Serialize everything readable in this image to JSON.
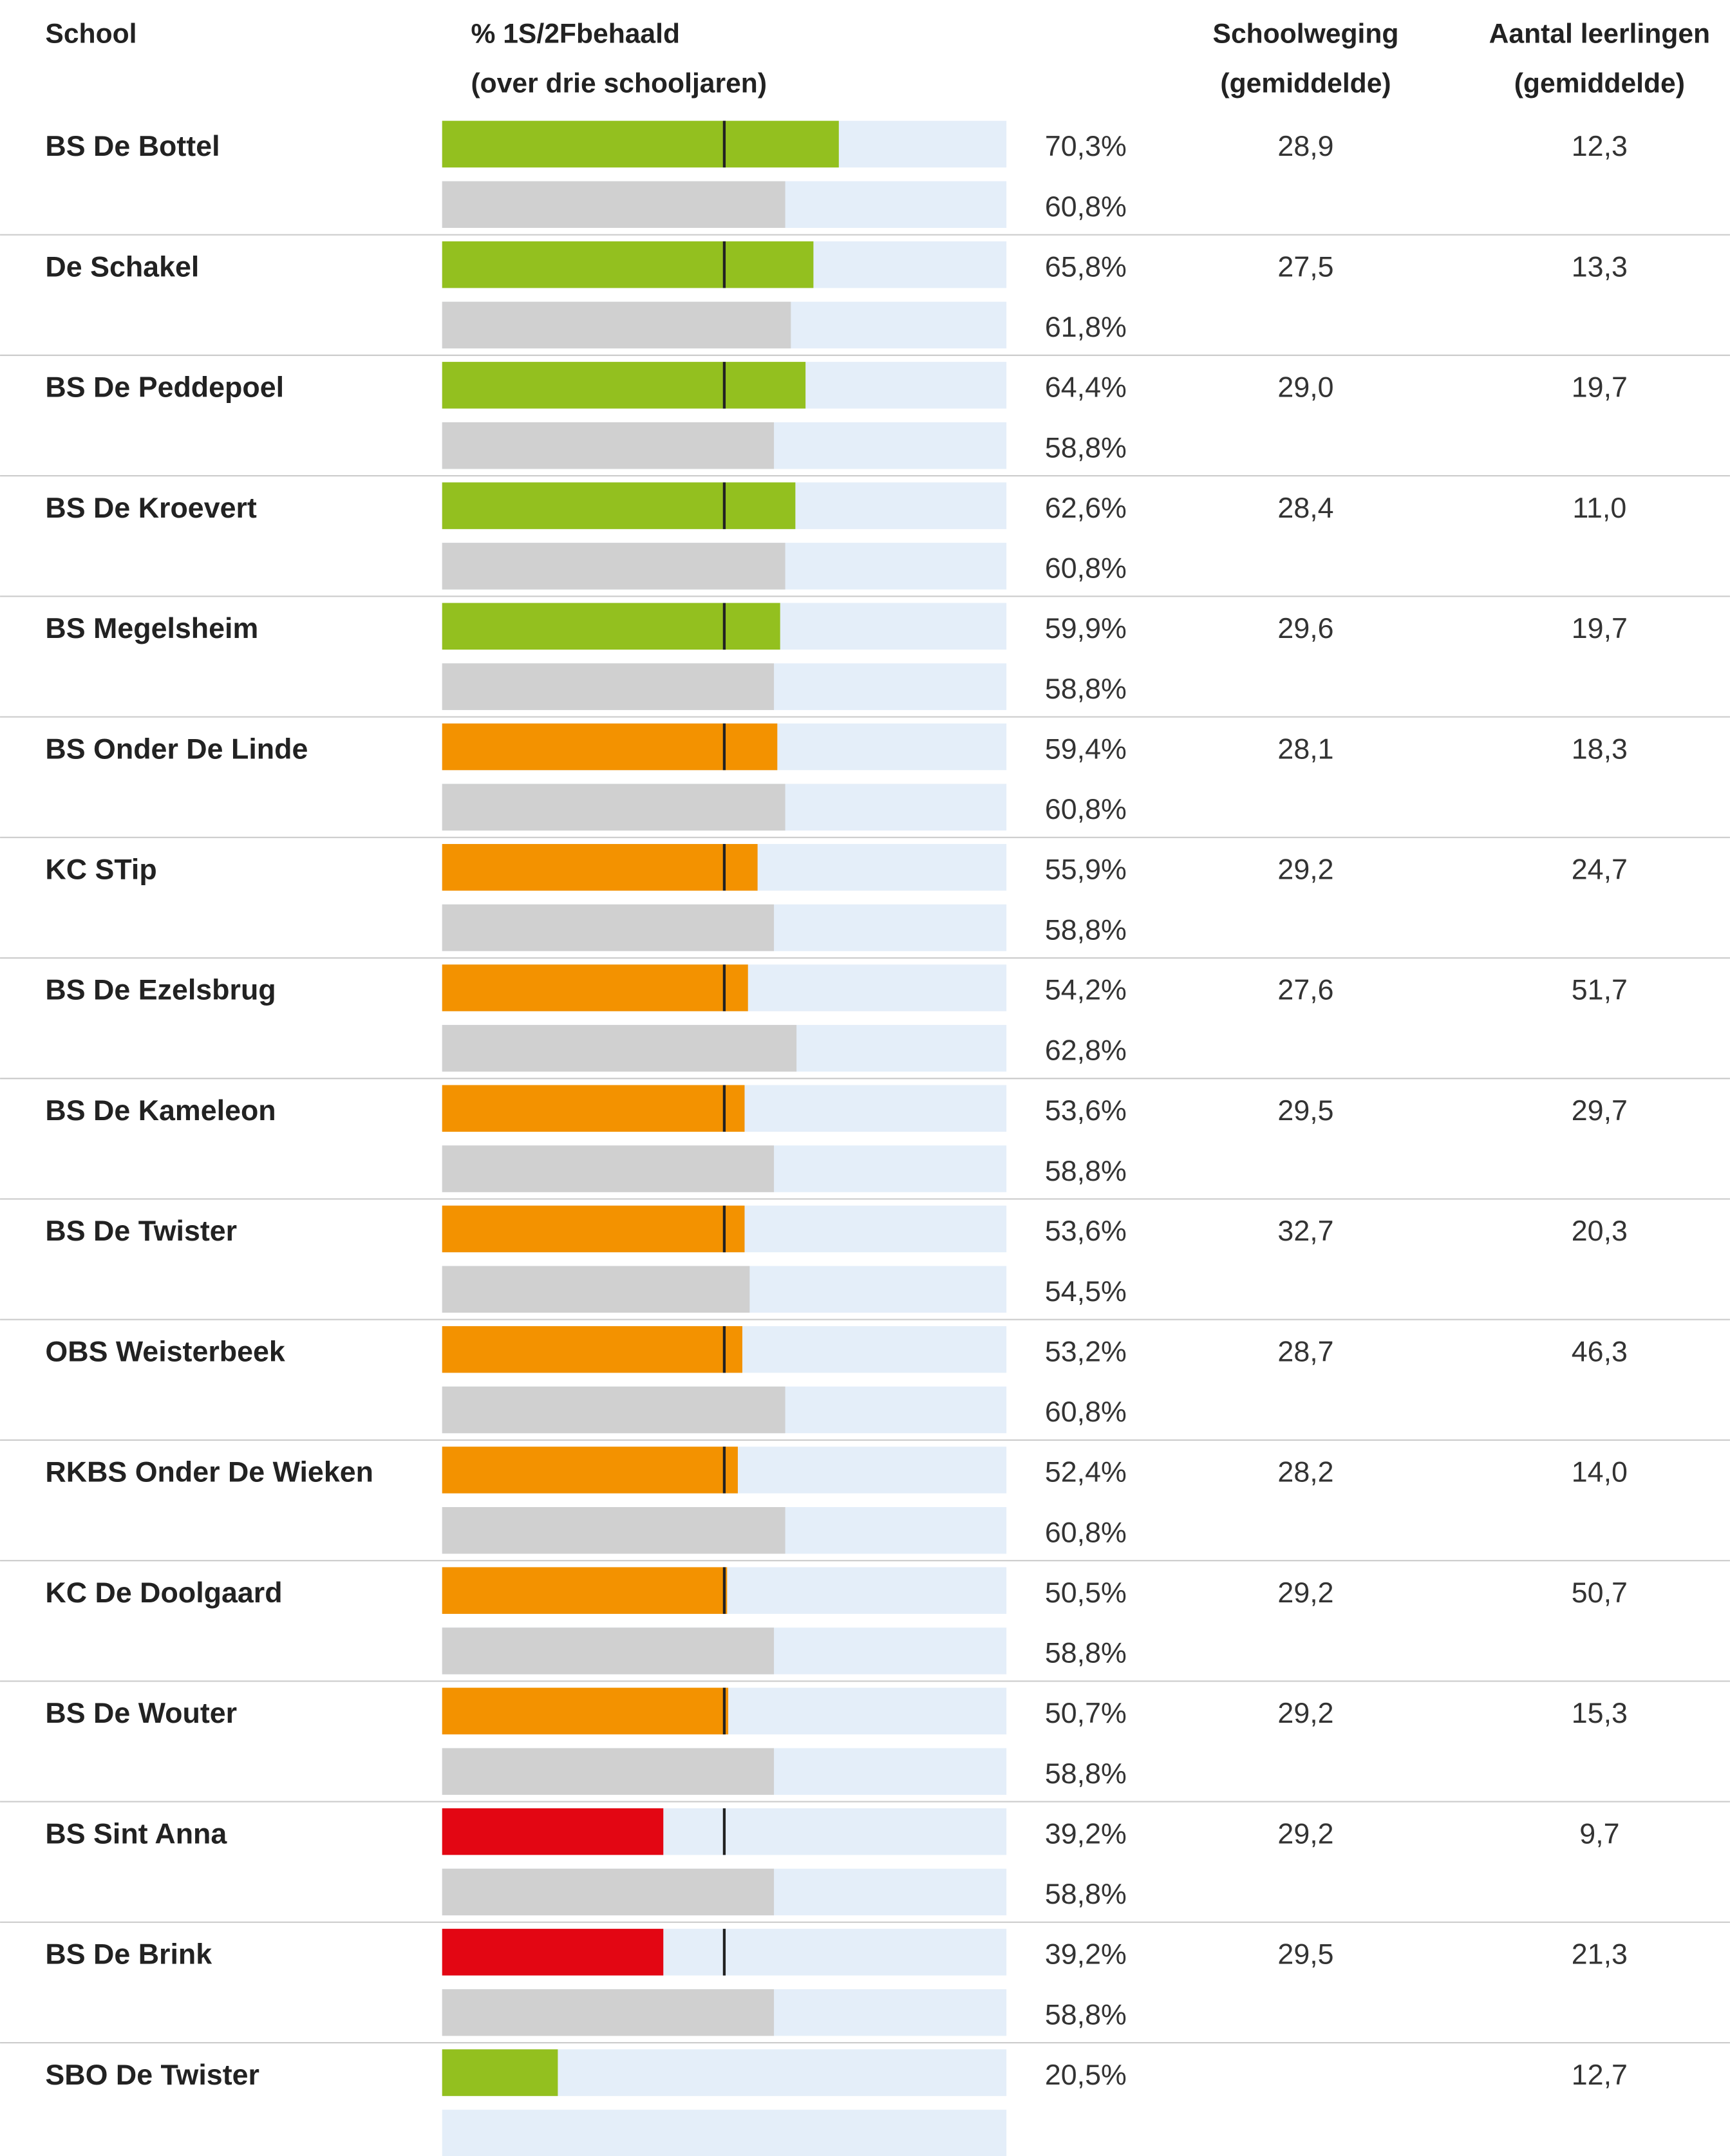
{
  "chart_data": {
    "type": "bar",
    "headers": [
      [
        "School"
      ],
      [
        "% 1S/2Fbehaald",
        "(over drie schooljaren)"
      ],
      [
        "Schoolweging",
        "(gemiddelde)"
      ],
      [
        "Aantal leerlingen",
        "(gemiddelde)"
      ]
    ],
    "xlim": [
      0,
      100
    ],
    "marker": 50,
    "marker_color": "#222222",
    "reference_color": "#d0d0d0",
    "track_color": "#e4eef9",
    "categories": [
      "BS De Bottel",
      "De Schakel",
      "BS De Peddepoel",
      "BS De Kroevert",
      "BS Megelsheim",
      "BS Onder De Linde",
      "KC STip",
      "BS De Ezelsbrug",
      "BS De Kameleon",
      "BS De Twister",
      "OBS Weisterbeek",
      "RKBS Onder De Wieken",
      "KC De Doolgaard",
      "BS De Wouter",
      "BS Sint Anna",
      "BS De Brink",
      "SBO De Twister"
    ],
    "values": [
      70.3,
      65.8,
      64.4,
      62.6,
      59.9,
      59.4,
      55.9,
      54.2,
      53.6,
      53.6,
      53.2,
      52.4,
      50.5,
      50.7,
      39.2,
      39.2,
      20.5
    ],
    "value_labels": [
      "70,3%",
      "65,8%",
      "64,4%",
      "62,6%",
      "59,9%",
      "59,4%",
      "55,9%",
      "54,2%",
      "53,6%",
      "53,6%",
      "53,2%",
      "52,4%",
      "50,5%",
      "50,7%",
      "39,2%",
      "39,2%",
      "20,5%"
    ],
    "colors": [
      "#93c01f",
      "#93c01f",
      "#93c01f",
      "#93c01f",
      "#93c01f",
      "#f39200",
      "#f39200",
      "#f39200",
      "#f39200",
      "#f39200",
      "#f39200",
      "#f39200",
      "#f39200",
      "#f39200",
      "#e30613",
      "#e30613",
      "#93c01f"
    ],
    "reference_values": [
      60.8,
      61.8,
      58.8,
      60.8,
      58.8,
      60.8,
      58.8,
      62.8,
      58.8,
      54.5,
      60.8,
      60.8,
      58.8,
      58.8,
      58.8,
      58.8,
      null
    ],
    "reference_labels": [
      "60,8%",
      "61,8%",
      "58,8%",
      "60,8%",
      "58,8%",
      "60,8%",
      "58,8%",
      "62,8%",
      "58,8%",
      "54,5%",
      "60,8%",
      "60,8%",
      "58,8%",
      "58,8%",
      "58,8%",
      "58,8%",
      null
    ],
    "schoolweging": [
      "28,9",
      "27,5",
      "29,0",
      "28,4",
      "29,6",
      "28,1",
      "29,2",
      "27,6",
      "29,5",
      "32,7",
      "28,7",
      "28,2",
      "29,2",
      "29,2",
      "29,2",
      "29,5",
      null
    ],
    "leerlingen": [
      "12,3",
      "13,3",
      "19,7",
      "11,0",
      "19,7",
      "18,3",
      "24,7",
      "51,7",
      "29,7",
      "20,3",
      "46,3",
      "14,0",
      "50,7",
      "15,3",
      "9,7",
      "21,3",
      "12,7"
    ]
  }
}
